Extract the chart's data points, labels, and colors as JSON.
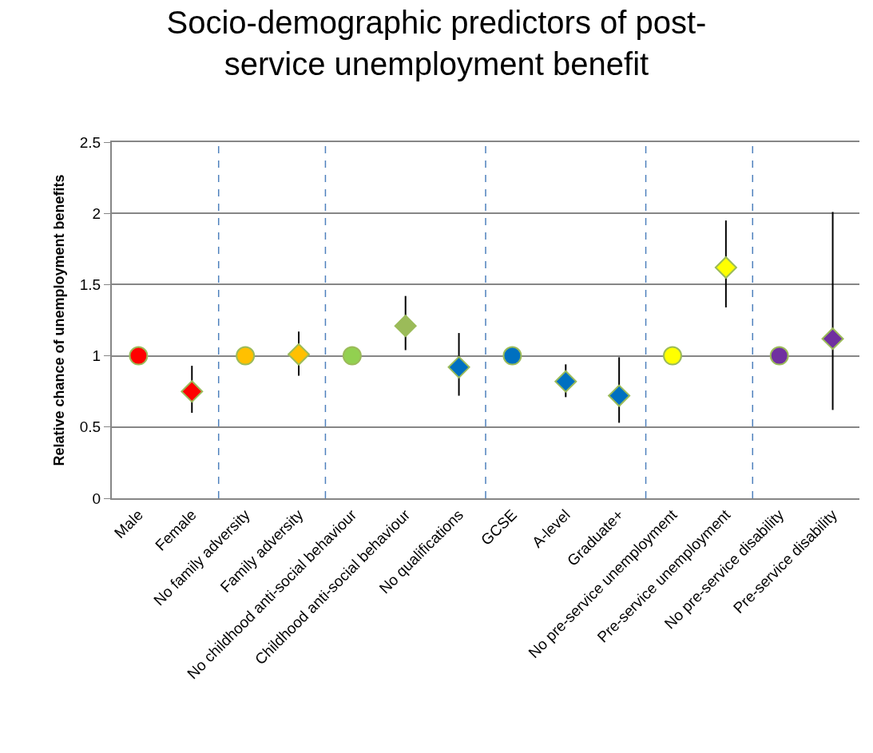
{
  "chart_data": {
    "type": "scatter",
    "title": "Socio-demographic predictors of post-\nservice unemployment benefit",
    "ylabel": "Relative chance of unemployment benefits",
    "categories": [
      "Male",
      "Female",
      "No family adversity",
      "Family adversity",
      "No childhood anti-social behaviour",
      "Childhood anti-social behaviour",
      "No qualifications",
      "GCSE",
      "A-level",
      "Graduate+",
      "No pre-service unemployment",
      "Pre-service unemployment",
      "No pre-service disability",
      "Pre-service disability"
    ],
    "series": [
      {
        "marker": "circle",
        "colors": [
          "#ff0000",
          null,
          "#ffc000",
          null,
          "#92d050",
          null,
          null,
          "#0070c0",
          null,
          null,
          "#ffff00",
          null,
          "#7030a0",
          null
        ],
        "values": [
          1,
          null,
          1,
          null,
          1,
          null,
          null,
          1,
          null,
          null,
          1,
          null,
          1,
          null
        ]
      },
      {
        "marker": "diamond",
        "colors": [
          null,
          "#ff0000",
          null,
          "#ffc000",
          null,
          "#9bbb59",
          "#0070c0",
          null,
          "#0070c0",
          "#0070c0",
          null,
          "#ffff00",
          null,
          "#7030a0"
        ],
        "values": [
          null,
          0.75,
          null,
          1.01,
          null,
          1.21,
          0.92,
          null,
          0.82,
          0.72,
          null,
          1.62,
          null,
          1.12
        ],
        "errors": [
          null,
          [
            0.6,
            0.93
          ],
          null,
          [
            0.86,
            1.17
          ],
          null,
          [
            1.04,
            1.42
          ],
          [
            0.72,
            1.16
          ],
          null,
          [
            0.71,
            0.94
          ],
          [
            0.53,
            0.99
          ],
          null,
          [
            1.34,
            1.95
          ],
          null,
          [
            0.62,
            2.01
          ]
        ]
      }
    ],
    "ylim": [
      0,
      2.5
    ],
    "yticks": [
      0,
      0.5,
      1,
      1.5,
      2,
      2.5
    ],
    "grid": "y",
    "legend": false
  }
}
